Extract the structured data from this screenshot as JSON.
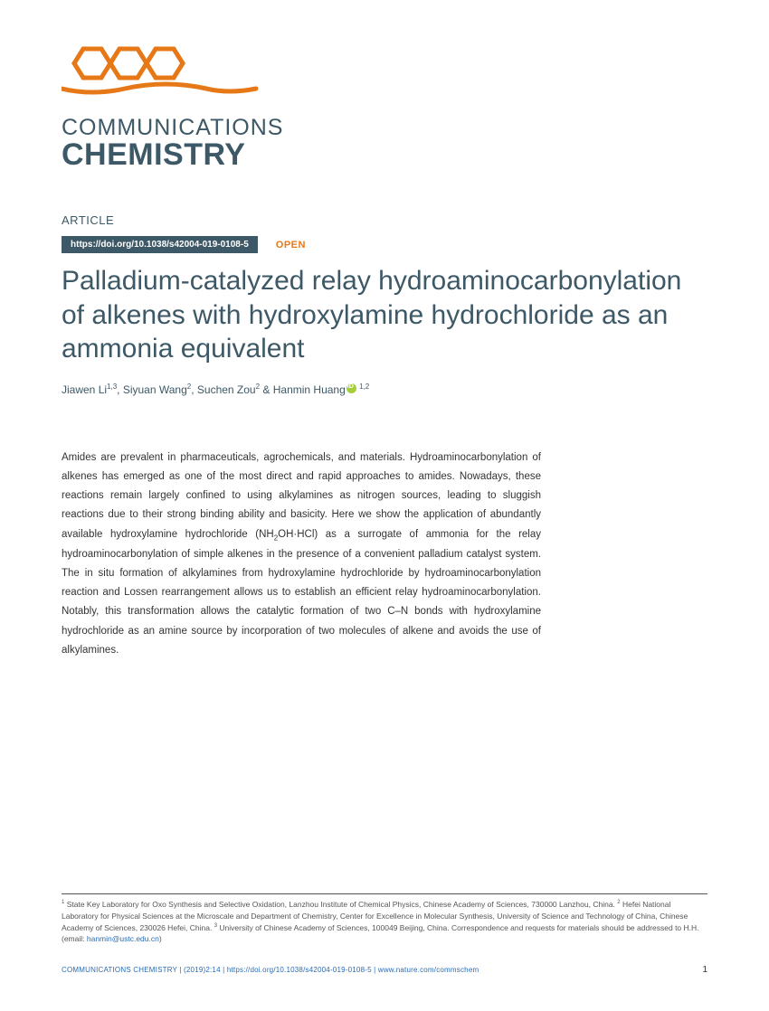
{
  "journal": {
    "name_line1": "COMMUNICATIONS",
    "name_line2": "CHEMISTRY",
    "logo_color": "#e67817",
    "text_color": "#3d5866"
  },
  "article": {
    "label": "ARTICLE",
    "doi": "https://doi.org/10.1038/s42004-019-0108-5",
    "open_access": "OPEN",
    "title": "Palladium-catalyzed relay hydroaminocarbonylation of alkenes with hydroxylamine hydrochloride as an ammonia equivalent",
    "authors_html": "Jiawen Li<sup>1,3</sup>, Siyuan Wang<sup>2</sup>, Suchen Zou<sup>2</sup> & Hanmin Huang"
  },
  "abstract": {
    "text": "Amides are prevalent in pharmaceuticals, agrochemicals, and materials. Hydroaminocarbonylation of alkenes has emerged as one of the most direct and rapid approaches to amides. Nowadays, these reactions remain largely confined to using alkylamines as nitrogen sources, leading to sluggish reactions due to their strong binding ability and basicity. Here we show the application of abundantly available hydroxylamine hydrochloride (NH2OH·HCl) as a surrogate of ammonia for the relay hydroaminocarbonylation of simple alkenes in the presence of a convenient palladium catalyst system. The in situ formation of alkylamines from hydroxylamine hydrochloride by hydroaminocarbonylation reaction and Lossen rearrangement allows us to establish an efficient relay hydroaminocarbonylation. Notably, this transformation allows the catalytic formation of two C–N bonds with hydroxylamine hydrochloride as an amine source by incorporation of two molecules of alkene and avoids the use of alkylamines."
  },
  "affiliations": {
    "text_html": "<sup>1</sup> State Key Laboratory for Oxo Synthesis and Selective Oxidation, Lanzhou Institute of Chemical Physics, Chinese Academy of Sciences, 730000 Lanzhou, China. <sup>2</sup> Hefei National Laboratory for Physical Sciences at the Microscale and Department of Chemistry, Center for Excellence in Molecular Synthesis, University of Science and Technology of China, Chinese Academy of Sciences, 230026 Hefei, China. <sup>3</sup> University of Chinese Academy of Sciences, 100049 Beijing, China. Correspondence and requests for materials should be addressed to H.H. (email: ",
    "email": "hanmin@ustc.edu.cn",
    "close": ")"
  },
  "footer": {
    "citation": "COMMUNICATIONS CHEMISTRY | (2019)2:14 | https://doi.org/10.1038/s42004-019-0108-5 | www.nature.com/commschem",
    "page": "1"
  },
  "colors": {
    "brand_orange": "#e67817",
    "brand_teal": "#3d5866",
    "link_blue": "#2a6bb5",
    "orcid_green": "#a6ce39"
  }
}
